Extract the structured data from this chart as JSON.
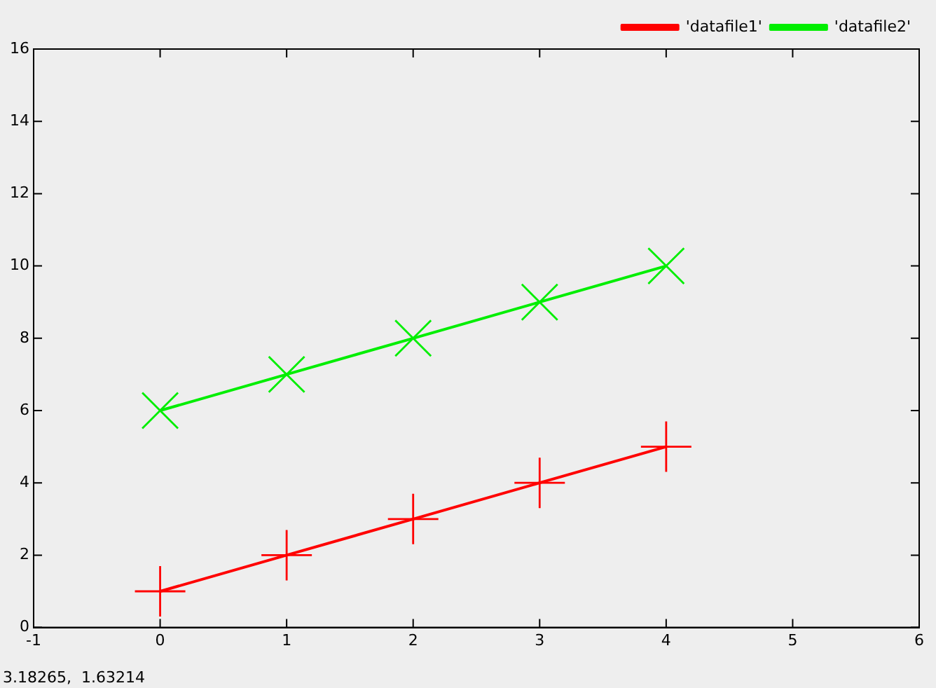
{
  "chart_data": {
    "type": "line",
    "xlim": [
      -1,
      6
    ],
    "xticks": [
      -1,
      0,
      1,
      2,
      3,
      4,
      5,
      6
    ],
    "ylim": [
      0,
      16
    ],
    "yticks": [
      0,
      2,
      4,
      6,
      8,
      10,
      12,
      14,
      16
    ],
    "grid": false,
    "legend": "top right",
    "line_style": "solid",
    "series": [
      {
        "name": "'datafile1'",
        "color": "#ff0000",
        "x": [
          0,
          1,
          2,
          3,
          4
        ],
        "values": [
          1,
          2,
          3,
          4,
          5
        ],
        "marker": "cross"
      },
      {
        "name": "'datafile2'",
        "color": "#00ee00",
        "x": [
          0,
          1,
          2,
          3,
          4
        ],
        "values": [
          6,
          7,
          8,
          9,
          10
        ],
        "marker": "x"
      }
    ],
    "annotations": [
      "3.18265,  1.63214"
    ]
  }
}
